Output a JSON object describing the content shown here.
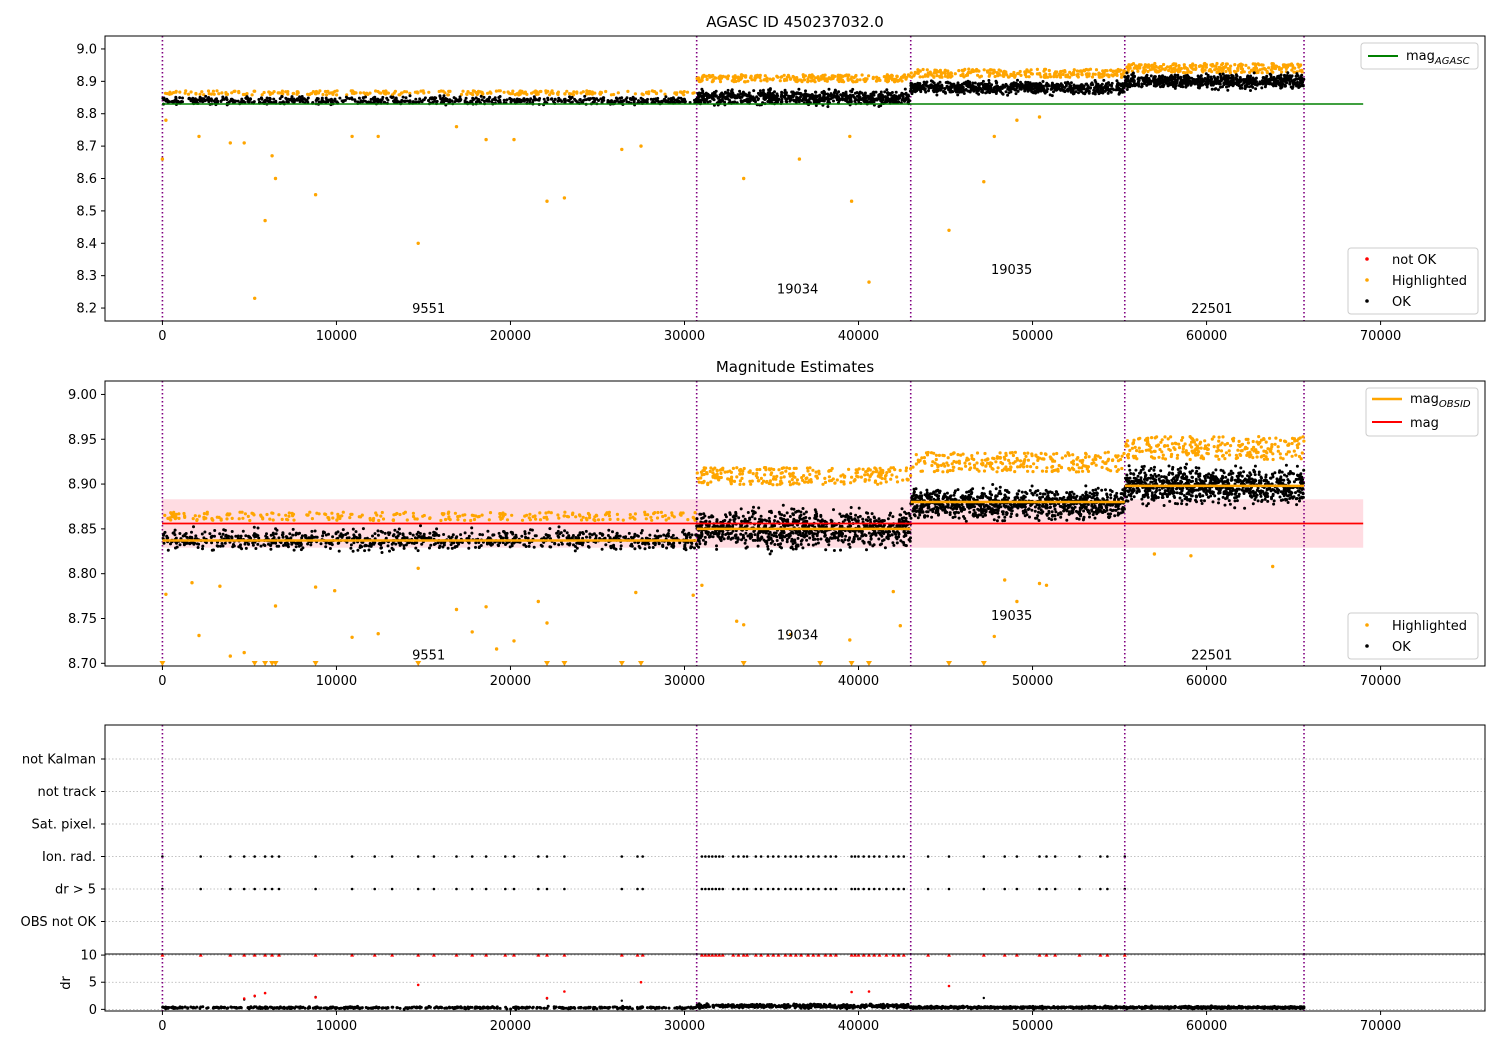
{
  "figure": {
    "title": "AGASC ID 450237032.0"
  },
  "colors": {
    "ok": "#000000",
    "highlighted": "#ffa500",
    "not_ok": "#ff0000",
    "mag_agasc": "#008000",
    "mag": "#ff0000",
    "mag_obsid": "#ffa500",
    "obs_boundary": "#800080",
    "band": "#ffc0cb"
  },
  "chart_data": [
    {
      "type": "scatter",
      "panel": "top",
      "title": "AGASC ID 450237032.0",
      "xlim": [
        -3300,
        76000
      ],
      "ylim": [
        8.16,
        9.04
      ],
      "xticks": [
        0,
        10000,
        20000,
        30000,
        40000,
        50000,
        60000,
        70000
      ],
      "yticks": [
        8.2,
        8.3,
        8.4,
        8.5,
        8.6,
        8.7,
        8.8,
        8.9,
        9.0
      ],
      "ytick_labels": [
        "8.2",
        "8.3",
        "8.4",
        "8.5",
        "8.6",
        "8.7",
        "8.8",
        "8.9",
        "9.0"
      ],
      "grid": false,
      "legend_upper": {
        "position": "top-right",
        "entries": [
          {
            "label": "mag",
            "sub": "AGASC",
            "color_key": "mag_agasc",
            "kind": "line"
          }
        ]
      },
      "legend_lower": {
        "position": "bottom-right",
        "entries": [
          {
            "label": "not OK",
            "color_key": "not_ok",
            "kind": "dot"
          },
          {
            "label": "Highlighted",
            "color_key": "highlighted",
            "kind": "dot"
          },
          {
            "label": "OK",
            "color_key": "ok",
            "kind": "dot"
          }
        ]
      },
      "hlines": [
        {
          "y": 8.83,
          "x_from": -20,
          "x_to": 69000,
          "color_key": "mag_agasc"
        }
      ],
      "obs_boundaries": [
        0,
        30700,
        43000,
        55300,
        65600
      ],
      "obs_labels": [
        {
          "text": "9551",
          "x": 15300,
          "y": 8.2
        },
        {
          "text": "19034",
          "x": 36500,
          "y": 8.26
        },
        {
          "text": "19035",
          "x": 48800,
          "y": 8.32
        },
        {
          "text": "22501",
          "x": 60300,
          "y": 8.2
        }
      ],
      "ok_bands": [
        {
          "x_from": 0,
          "x_to": 30700,
          "mean": 8.84,
          "spread": 0.018
        },
        {
          "x_from": 30700,
          "x_to": 43000,
          "mean": 8.85,
          "spread": 0.032
        },
        {
          "x_from": 43000,
          "x_to": 55300,
          "mean": 8.88,
          "spread": 0.028
        },
        {
          "x_from": 55300,
          "x_to": 65600,
          "mean": 8.9,
          "spread": 0.03
        }
      ],
      "highlight_caps": [
        {
          "x_from": 0,
          "x_to": 30700,
          "y": 8.862,
          "jitter": 0.008
        },
        {
          "x_from": 30700,
          "x_to": 43000,
          "y": 8.905,
          "jitter": 0.014
        },
        {
          "x_from": 43000,
          "x_to": 55300,
          "y": 8.92,
          "jitter": 0.016
        },
        {
          "x_from": 55300,
          "x_to": 65600,
          "y": 8.935,
          "jitter": 0.018
        }
      ],
      "highlighted_points": [
        [
          0,
          8.66
        ],
        [
          200,
          8.78
        ],
        [
          2100,
          8.73
        ],
        [
          3900,
          8.71
        ],
        [
          4700,
          8.71
        ],
        [
          5300,
          8.23
        ],
        [
          5900,
          8.47
        ],
        [
          6300,
          8.67
        ],
        [
          6500,
          8.6
        ],
        [
          8800,
          8.55
        ],
        [
          10900,
          8.73
        ],
        [
          12400,
          8.73
        ],
        [
          14700,
          8.4
        ],
        [
          16900,
          8.76
        ],
        [
          18600,
          8.72
        ],
        [
          20200,
          8.72
        ],
        [
          22100,
          8.53
        ],
        [
          23100,
          8.54
        ],
        [
          26400,
          8.69
        ],
        [
          27500,
          8.7
        ],
        [
          33400,
          8.6
        ],
        [
          36600,
          8.66
        ],
        [
          39600,
          8.53
        ],
        [
          40600,
          8.28
        ],
        [
          39500,
          8.73
        ],
        [
          45200,
          8.44
        ],
        [
          47200,
          8.59
        ],
        [
          47800,
          8.73
        ],
        [
          49100,
          8.78
        ],
        [
          50400,
          8.79
        ]
      ]
    },
    {
      "type": "scatter",
      "panel": "middle",
      "title": "Magnitude Estimates",
      "xlim": [
        -3300,
        76000
      ],
      "ylim": [
        8.697,
        9.015
      ],
      "xticks": [
        0,
        10000,
        20000,
        30000,
        40000,
        50000,
        60000,
        70000
      ],
      "yticks": [
        8.7,
        8.75,
        8.8,
        8.85,
        8.9,
        8.95,
        9.0
      ],
      "ytick_labels": [
        "8.70",
        "8.75",
        "8.80",
        "8.85",
        "8.90",
        "8.95",
        "9.00"
      ],
      "grid": false,
      "legend_upper": {
        "position": "top-right",
        "entries": [
          {
            "label": "mag",
            "sub": "OBSID",
            "color_key": "mag_obsid",
            "kind": "line"
          },
          {
            "label": "mag",
            "sub": "",
            "color_key": "mag",
            "kind": "line"
          }
        ]
      },
      "legend_lower": {
        "position": "bottom-right",
        "entries": [
          {
            "label": "Highlighted",
            "color_key": "highlighted",
            "kind": "dot"
          },
          {
            "label": "OK",
            "color_key": "ok",
            "kind": "dot"
          }
        ]
      },
      "mag_band": {
        "y_from": 8.829,
        "y_to": 8.883,
        "x_from": -20,
        "x_to": 69000
      },
      "hlines": [
        {
          "y": 8.856,
          "x_from": -20,
          "x_to": 69000,
          "color_key": "mag"
        }
      ],
      "obsid_means": [
        {
          "x_from": 0,
          "x_to": 30700,
          "y": 8.837
        },
        {
          "x_from": 30700,
          "x_to": 43000,
          "y": 8.85
        },
        {
          "x_from": 43000,
          "x_to": 55300,
          "y": 8.88
        },
        {
          "x_from": 55300,
          "x_to": 65600,
          "y": 8.898
        }
      ],
      "obs_boundaries": [
        0,
        30700,
        43000,
        55300,
        65600
      ],
      "obs_labels": [
        {
          "text": "9551",
          "x": 15300,
          "y": 8.71
        },
        {
          "text": "19034",
          "x": 36500,
          "y": 8.732
        },
        {
          "text": "19035",
          "x": 48800,
          "y": 8.754
        },
        {
          "text": "22501",
          "x": 60300,
          "y": 8.71
        }
      ],
      "ok_bands": [
        {
          "x_from": 0,
          "x_to": 30700,
          "mean": 8.838,
          "spread": 0.016
        },
        {
          "x_from": 30700,
          "x_to": 43000,
          "mean": 8.85,
          "spread": 0.03
        },
        {
          "x_from": 43000,
          "x_to": 55300,
          "mean": 8.878,
          "spread": 0.024
        },
        {
          "x_from": 55300,
          "x_to": 65600,
          "mean": 8.898,
          "spread": 0.028
        }
      ],
      "highlight_caps": [
        {
          "x_from": 0,
          "x_to": 30700,
          "y": 8.862,
          "jitter": 0.006
        },
        {
          "x_from": 30700,
          "x_to": 43000,
          "y": 8.905,
          "jitter": 0.012
        },
        {
          "x_from": 43000,
          "x_to": 55300,
          "y": 8.92,
          "jitter": 0.014
        },
        {
          "x_from": 55300,
          "x_to": 65600,
          "y": 8.935,
          "jitter": 0.016
        }
      ],
      "highlighted_points": [
        [
          200,
          8.777
        ],
        [
          1700,
          8.79
        ],
        [
          2100,
          8.731
        ],
        [
          3300,
          8.786
        ],
        [
          3900,
          8.708
        ],
        [
          4700,
          8.712
        ],
        [
          6500,
          8.764
        ],
        [
          8800,
          8.785
        ],
        [
          9900,
          8.781
        ],
        [
          10900,
          8.729
        ],
        [
          12400,
          8.733
        ],
        [
          14700,
          8.806
        ],
        [
          16900,
          8.76
        ],
        [
          17800,
          8.735
        ],
        [
          18600,
          8.763
        ],
        [
          19200,
          8.716
        ],
        [
          20200,
          8.725
        ],
        [
          21600,
          8.769
        ],
        [
          22100,
          8.745
        ],
        [
          27200,
          8.779
        ],
        [
          30500,
          8.776
        ],
        [
          31000,
          8.787
        ],
        [
          33000,
          8.747
        ],
        [
          33400,
          8.743
        ],
        [
          36100,
          8.732
        ],
        [
          39500,
          8.726
        ],
        [
          42400,
          8.742
        ],
        [
          42000,
          8.78
        ],
        [
          47800,
          8.73
        ],
        [
          49100,
          8.769
        ],
        [
          50400,
          8.789
        ],
        [
          50800,
          8.787
        ],
        [
          48400,
          8.793
        ],
        [
          57000,
          8.822
        ],
        [
          59100,
          8.82
        ],
        [
          63800,
          8.808
        ]
      ],
      "clipped_markers_x": [
        0,
        5300,
        5900,
        6300,
        6500,
        8800,
        14700,
        22100,
        23100,
        26400,
        27500,
        33400,
        37800,
        39600,
        40600,
        45200,
        47200
      ]
    },
    {
      "type": "scatter",
      "panel": "flags",
      "xlim": [
        -3300,
        76000
      ],
      "categories": [
        "not Kalman",
        "not track",
        "Sat. pixel.",
        "Ion. rad.",
        "dr > 5",
        "OBS not OK"
      ],
      "grid": true,
      "obs_boundaries": [
        0,
        30700,
        43000,
        55300,
        65600
      ],
      "flag_x": {
        "Ion. rad.": [
          0,
          2200,
          3900,
          4700,
          5300,
          5900,
          6300,
          6700,
          8800,
          10900,
          12200,
          13200,
          14700,
          15600,
          16900,
          17800,
          18600,
          19700,
          20200,
          21600,
          22100,
          23100,
          26400,
          27300,
          27600,
          31000,
          31200,
          31400,
          31600,
          31800,
          32000,
          32200,
          32800,
          33100,
          33400,
          33600,
          34100,
          34400,
          34800,
          35100,
          35400,
          35800,
          36100,
          36400,
          36700,
          37100,
          37400,
          37700,
          38100,
          38400,
          38700,
          39600,
          39800,
          40000,
          40300,
          40600,
          40900,
          41200,
          41600,
          42000,
          42300,
          42600,
          44000,
          45200,
          47200,
          48400,
          49100,
          50400,
          50800,
          51300,
          52700,
          53900,
          54300,
          55300
        ],
        "dr > 5": [
          0,
          2200,
          3900,
          4700,
          5300,
          5900,
          6300,
          6700,
          8800,
          10900,
          12200,
          13200,
          14700,
          15600,
          16900,
          17800,
          18600,
          19700,
          20200,
          21600,
          22100,
          23100,
          26400,
          27300,
          27600,
          31000,
          31200,
          31400,
          31600,
          31800,
          32000,
          32200,
          32800,
          33100,
          33400,
          33600,
          34100,
          34400,
          34800,
          35100,
          35400,
          35800,
          36100,
          36400,
          36700,
          37100,
          37400,
          37700,
          38100,
          38400,
          38700,
          39600,
          39800,
          40000,
          40300,
          40600,
          40900,
          41200,
          41600,
          42000,
          42300,
          42600,
          44000,
          45200,
          47200,
          48400,
          49100,
          50400,
          50800,
          51300,
          52700,
          53900,
          54300,
          55300
        ]
      }
    },
    {
      "type": "scatter",
      "panel": "dr",
      "ylabel": "dr",
      "xlim": [
        -3300,
        76000
      ],
      "ylim": [
        -0.3,
        10.2
      ],
      "xticks": [
        0,
        10000,
        20000,
        30000,
        40000,
        50000,
        60000,
        70000
      ],
      "yticks": [
        0,
        5,
        10
      ],
      "ytick_labels": [
        "0",
        "5",
        "10"
      ],
      "grid": true,
      "obs_boundaries": [
        0,
        30700,
        43000,
        55300,
        65600
      ],
      "ok_bands": [
        {
          "x_from": 0,
          "x_to": 30700,
          "mean": 0.3,
          "spread": 0.3
        },
        {
          "x_from": 30700,
          "x_to": 43000,
          "mean": 0.6,
          "spread": 0.5
        },
        {
          "x_from": 43000,
          "x_to": 55300,
          "mean": 0.35,
          "spread": 0.3
        },
        {
          "x_from": 55300,
          "x_to": 65600,
          "mean": 0.35,
          "spread": 0.3
        }
      ],
      "not_ok_points": [
        [
          4700,
          2.0
        ],
        [
          5300,
          2.5
        ],
        [
          5900,
          3.0
        ],
        [
          8800,
          2.2
        ],
        [
          14700,
          4.5
        ],
        [
          22100,
          2.1
        ],
        [
          23100,
          3.3
        ],
        [
          27500,
          5.0
        ],
        [
          39600,
          3.2
        ],
        [
          40600,
          3.3
        ],
        [
          45200,
          4.3
        ]
      ],
      "ok_outliers": [
        [
          4700,
          1.8
        ],
        [
          5300,
          2.4
        ],
        [
          8800,
          2.3
        ],
        [
          22100,
          2.0
        ],
        [
          26400,
          1.6
        ],
        [
          47200,
          2.1
        ]
      ],
      "capped_x": [
        0,
        2200,
        3900,
        4700,
        5300,
        5900,
        6300,
        6700,
        8800,
        10900,
        12200,
        13200,
        14700,
        15600,
        16900,
        17800,
        18600,
        19700,
        20200,
        21600,
        22100,
        23100,
        26400,
        27300,
        27600,
        31000,
        31200,
        31400,
        31600,
        31800,
        32000,
        32200,
        32800,
        33100,
        33400,
        33600,
        34100,
        34400,
        34800,
        35100,
        35400,
        35800,
        36100,
        36400,
        36700,
        37100,
        37400,
        37700,
        38100,
        38400,
        38700,
        39600,
        39800,
        40000,
        40300,
        40600,
        40900,
        41200,
        41600,
        42000,
        42300,
        42600,
        44000,
        45200,
        47200,
        48400,
        49100,
        50400,
        50800,
        51300,
        52700,
        53900,
        54300,
        55300
      ]
    }
  ]
}
